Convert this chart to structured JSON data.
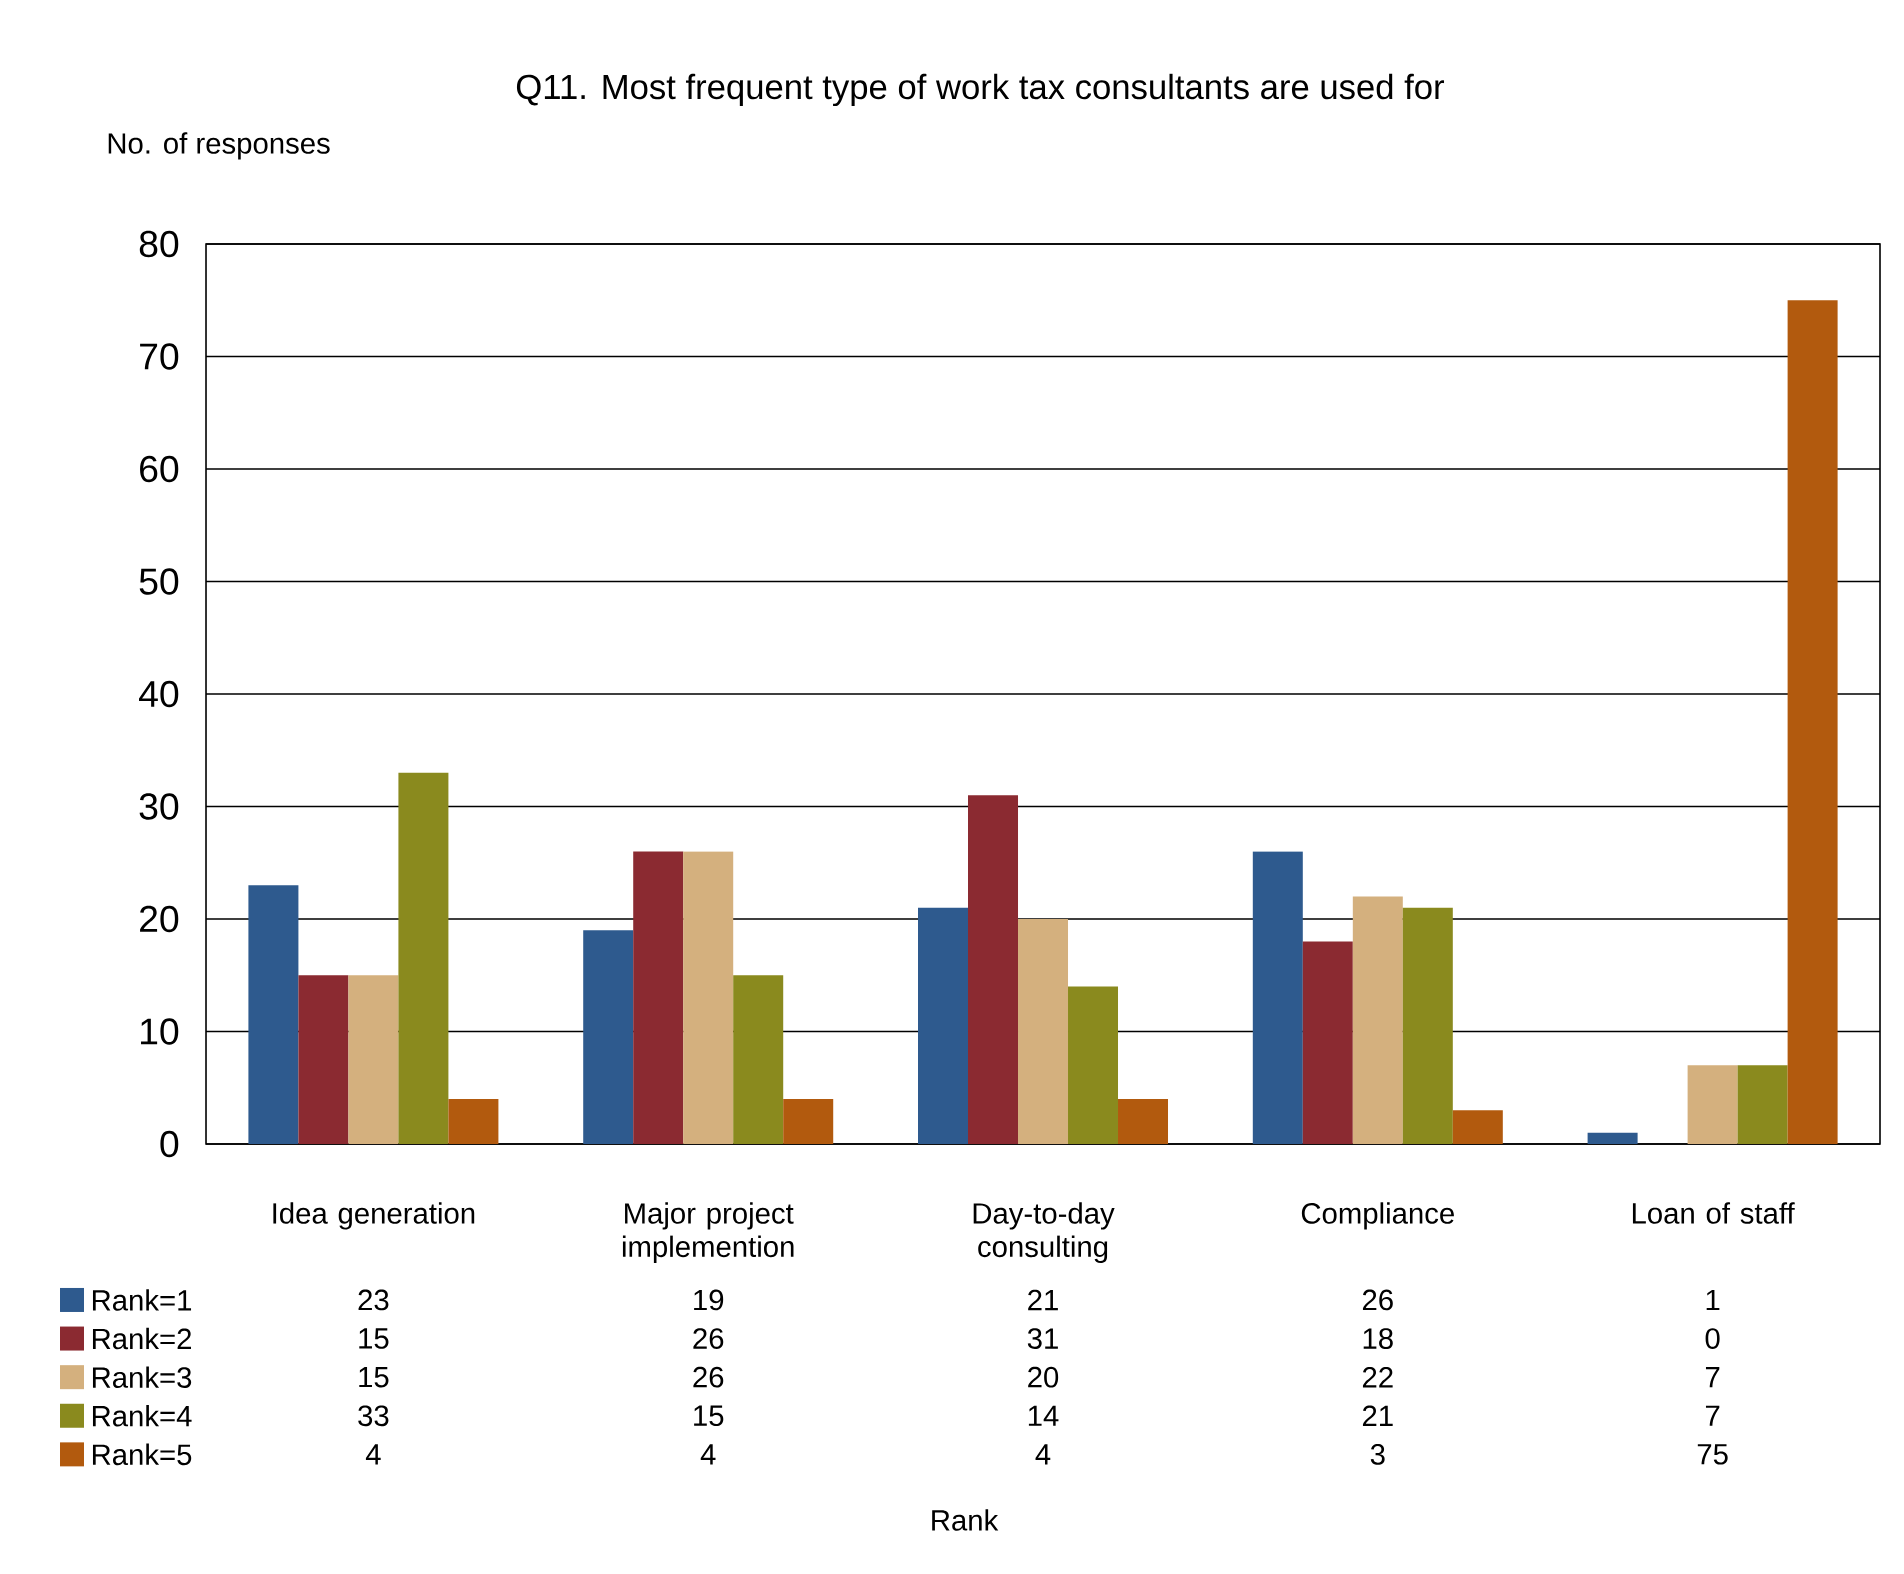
{
  "chart_data": {
    "type": "bar",
    "title": "Q11. Most frequent type of work tax consultants are used for",
    "ylabel": "No. of responses",
    "annotations": [
      "Rank"
    ],
    "categories": [
      "Idea generation",
      "Major project implemention",
      "Day-to-day consulting",
      "Compliance",
      "Loan of staff"
    ],
    "series": [
      {
        "name": "Rank=1",
        "color": "#2e5a8e",
        "values": [
          23,
          19,
          21,
          26,
          1
        ]
      },
      {
        "name": "Rank=2",
        "color": "#8b2a31",
        "values": [
          15,
          26,
          31,
          18,
          0
        ]
      },
      {
        "name": "Rank=3",
        "color": "#d4b07e",
        "values": [
          15,
          26,
          20,
          22,
          7
        ]
      },
      {
        "name": "Rank=4",
        "color": "#8a8a1e",
        "values": [
          33,
          15,
          14,
          21,
          7
        ]
      },
      {
        "name": "Rank=5",
        "color": "#b25a0e",
        "values": [
          4,
          4,
          4,
          3,
          75
        ]
      }
    ],
    "ylim": [
      0,
      80
    ],
    "yticks": [
      0,
      10,
      20,
      30,
      40,
      50,
      60,
      70,
      80
    ],
    "grid": "y",
    "legend": "bottom left",
    "data_labels": true
  }
}
